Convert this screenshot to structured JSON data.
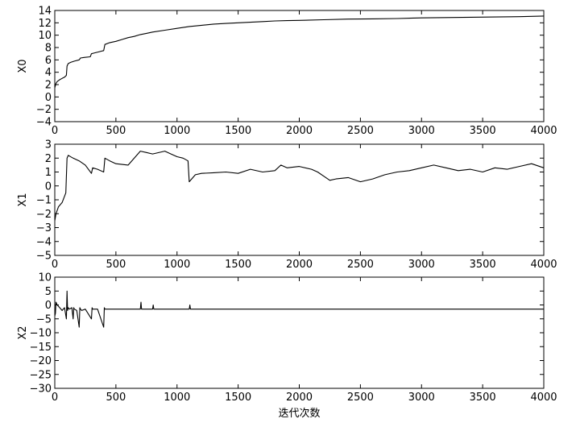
{
  "chart_data": [
    {
      "type": "line",
      "ylabel": "X0",
      "xlabel": "",
      "xlim": [
        0,
        4000
      ],
      "ylim": [
        -4,
        14
      ],
      "xticks": [
        0,
        500,
        1000,
        1500,
        2000,
        2500,
        3000,
        3500,
        4000
      ],
      "xtick_labels": [
        "0",
        "500",
        "1000",
        "1500",
        "2000",
        "2500",
        "3000",
        "3500",
        "4000"
      ],
      "yticks": [
        -4,
        -2,
        0,
        2,
        4,
        6,
        8,
        10,
        12,
        14
      ],
      "ytick_labels": [
        "−4",
        "−2",
        "0",
        "2",
        "4",
        "6",
        "8",
        "10",
        "12",
        "14"
      ],
      "grid": false,
      "series": [
        {
          "x": [
            0,
            10,
            20,
            40,
            60,
            80,
            95,
            100,
            110,
            130,
            160,
            200,
            210,
            240,
            290,
            300,
            320,
            360,
            400,
            410,
            450,
            500,
            550,
            600,
            650,
            700,
            750,
            800,
            900,
            1000,
            1100,
            1200,
            1300,
            1400,
            1500,
            1600,
            1700,
            1800,
            1900,
            2000,
            2200,
            2400,
            2600,
            2800,
            3000,
            3200,
            3400,
            3600,
            3800,
            4000
          ],
          "y": [
            1.5,
            2.2,
            2.5,
            2.8,
            3.0,
            3.2,
            3.5,
            5.0,
            5.4,
            5.6,
            5.8,
            6.0,
            6.3,
            6.4,
            6.5,
            7.0,
            7.1,
            7.3,
            7.5,
            8.5,
            8.8,
            9.0,
            9.3,
            9.6,
            9.8,
            10.1,
            10.3,
            10.5,
            10.8,
            11.1,
            11.4,
            11.6,
            11.8,
            11.9,
            12.0,
            12.1,
            12.2,
            12.3,
            12.35,
            12.4,
            12.5,
            12.6,
            12.65,
            12.7,
            12.8,
            12.85,
            12.9,
            12.95,
            13.0,
            13.1
          ]
        }
      ]
    },
    {
      "type": "line",
      "ylabel": "X1",
      "xlabel": "",
      "xlim": [
        0,
        4000
      ],
      "ylim": [
        -5,
        3
      ],
      "xticks": [
        0,
        500,
        1000,
        1500,
        2000,
        2500,
        3000,
        3500,
        4000
      ],
      "xtick_labels": [
        "0",
        "500",
        "1000",
        "1500",
        "2000",
        "2500",
        "3000",
        "3500",
        "4000"
      ],
      "yticks": [
        -5,
        -4,
        -3,
        -2,
        -1,
        0,
        1,
        2,
        3
      ],
      "ytick_labels": [
        "−5",
        "−4",
        "−3",
        "−2",
        "−1",
        "0",
        "1",
        "2",
        "3"
      ],
      "grid": false,
      "series": [
        {
          "x": [
            0,
            10,
            30,
            60,
            90,
            100,
            110,
            150,
            200,
            250,
            300,
            310,
            350,
            400,
            410,
            450,
            500,
            600,
            700,
            750,
            800,
            900,
            950,
            1000,
            1050,
            1090,
            1100,
            1150,
            1200,
            1300,
            1400,
            1500,
            1600,
            1700,
            1800,
            1850,
            1900,
            2000,
            2100,
            2150,
            2200,
            2250,
            2300,
            2400,
            2500,
            2600,
            2700,
            2800,
            2900,
            3000,
            3100,
            3200,
            3300,
            3400,
            3500,
            3600,
            3700,
            3800,
            3900,
            4000
          ],
          "y": [
            -2.5,
            -2.0,
            -1.5,
            -1.2,
            -0.5,
            2.0,
            2.2,
            2.0,
            1.8,
            1.5,
            0.9,
            1.3,
            1.2,
            1.0,
            2.0,
            1.8,
            1.6,
            1.5,
            2.5,
            2.4,
            2.3,
            2.5,
            2.3,
            2.1,
            2.0,
            1.8,
            0.3,
            0.8,
            0.9,
            0.95,
            1.0,
            0.9,
            1.2,
            1.0,
            1.1,
            1.5,
            1.3,
            1.4,
            1.2,
            1.0,
            0.7,
            0.4,
            0.5,
            0.6,
            0.3,
            0.5,
            0.8,
            1.0,
            1.1,
            1.3,
            1.5,
            1.3,
            1.1,
            1.2,
            1.0,
            1.3,
            1.2,
            1.4,
            1.6,
            1.3
          ]
        }
      ]
    },
    {
      "type": "line",
      "ylabel": "X2",
      "xlabel": "迭代次数",
      "xlim": [
        0,
        4000
      ],
      "ylim": [
        -30,
        10
      ],
      "xticks": [
        0,
        500,
        1000,
        1500,
        2000,
        2500,
        3000,
        3500,
        4000
      ],
      "xtick_labels": [
        "0",
        "500",
        "1000",
        "1500",
        "2000",
        "2500",
        "3000",
        "3500",
        "4000"
      ],
      "yticks": [
        -30,
        -25,
        -20,
        -15,
        -10,
        -5,
        0,
        5,
        10
      ],
      "ytick_labels": [
        "−30",
        "−25",
        "−20",
        "−15",
        "−10",
        "−5",
        "0",
        "5",
        "10"
      ],
      "grid": false,
      "series": [
        {
          "x": [
            0,
            5,
            10,
            20,
            40,
            60,
            80,
            95,
            100,
            105,
            110,
            120,
            140,
            150,
            155,
            160,
            180,
            200,
            205,
            210,
            220,
            250,
            300,
            305,
            310,
            350,
            400,
            405,
            410,
            450,
            500,
            600,
            700,
            705,
            710,
            800,
            805,
            810,
            900,
            1000,
            1100,
            1105,
            1110,
            1200,
            1300,
            1400,
            1500,
            1600,
            1700,
            1800,
            1900,
            2000,
            2200,
            2400,
            2600,
            2800,
            3000,
            3200,
            3400,
            3600,
            3800,
            4000
          ],
          "y": [
            -4,
            -3,
            1,
            0,
            -1,
            -2,
            -1,
            -5,
            5,
            -2,
            -1,
            -1.5,
            -1,
            -5,
            -1,
            -1.5,
            -2,
            -8,
            -1,
            -1.5,
            -2,
            -1.5,
            -5,
            -1,
            -1.5,
            -1.5,
            -8,
            -1,
            -1.5,
            -1.5,
            -1.5,
            -1.5,
            -1.5,
            1,
            -1.5,
            -1.5,
            0,
            -1.5,
            -1.5,
            -1.5,
            -1.5,
            0,
            -1.5,
            -1.5,
            -1.5,
            -1.5,
            -1.5,
            -1.5,
            -1.5,
            -1.5,
            -1.5,
            -1.5,
            -1.5,
            -1.5,
            -1.5,
            -1.5,
            -1.5,
            -1.5,
            -1.5,
            -1.5,
            -1.5,
            -1.5
          ]
        }
      ]
    }
  ]
}
